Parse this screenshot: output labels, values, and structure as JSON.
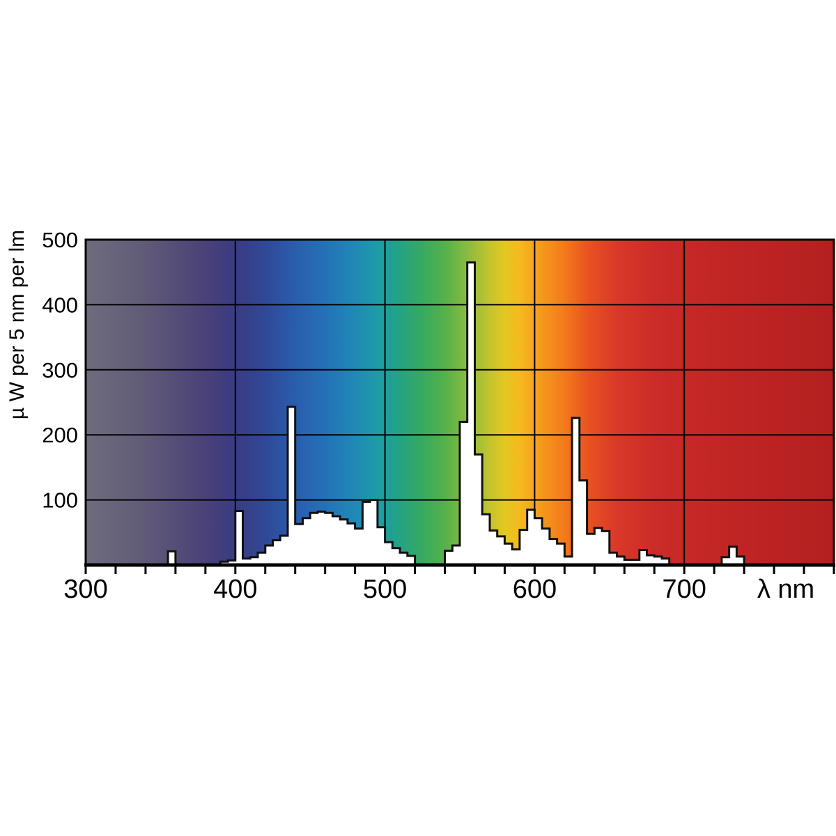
{
  "figure": {
    "y_axis_title": "µ W per 5 nm per lm",
    "x_axis_unit": "λ nm",
    "x_tick_labels": [
      "300",
      "400",
      "500",
      "600",
      "700"
    ],
    "y_tick_labels": [
      "100",
      "200",
      "300",
      "400",
      "500"
    ]
  },
  "chart_data": {
    "type": "area",
    "title": "",
    "xlabel": "λ nm",
    "ylabel": "µ W per 5 nm per lm",
    "x_range": [
      300,
      800
    ],
    "ylim": [
      0,
      500
    ],
    "grid": true,
    "x_major_gridlines_nm": [
      400,
      500,
      600,
      700
    ],
    "y_major_gridlines": [
      100,
      200,
      300,
      400
    ],
    "x_minor_tick_step_nm": 20,
    "bin_width_nm": 5,
    "bins_start_nm": 300,
    "values_uW_per_5nm_per_lm": [
      0,
      0,
      0,
      0,
      0,
      0,
      0,
      0,
      0,
      0,
      0,
      21,
      0,
      0,
      0,
      0,
      0,
      0,
      5,
      7,
      83,
      10,
      12,
      19,
      30,
      38,
      45,
      243,
      63,
      72,
      80,
      82,
      80,
      75,
      70,
      64,
      56,
      97,
      100,
      58,
      35,
      26,
      19,
      14,
      0,
      0,
      0,
      0,
      22,
      30,
      220,
      465,
      170,
      78,
      53,
      44,
      33,
      24,
      54,
      85,
      72,
      56,
      40,
      33,
      13,
      226,
      130,
      48,
      57,
      52,
      19,
      13,
      8,
      8,
      23,
      15,
      13,
      10,
      0,
      0,
      0,
      0,
      0,
      0,
      0,
      12,
      28,
      13,
      0,
      0,
      0,
      0,
      0,
      0,
      0,
      0,
      0,
      0,
      0,
      0
    ],
    "notable_peaks": [
      {
        "nm": 355,
        "value": 21
      },
      {
        "nm": 400,
        "value": 83
      },
      {
        "nm": 435,
        "value": 243
      },
      {
        "nm": 490,
        "value": 100
      },
      {
        "nm": 555,
        "value": 465
      },
      {
        "nm": 595,
        "value": 85
      },
      {
        "nm": 625,
        "value": 226
      },
      {
        "nm": 730,
        "value": 28
      }
    ],
    "curve_fill": "#ffffff",
    "curve_stroke": "#111111",
    "grid_color": "#000000",
    "background_spectrum_gradient": [
      {
        "nm": 300,
        "color": "#6f6c7d"
      },
      {
        "nm": 340,
        "color": "#605a78"
      },
      {
        "nm": 380,
        "color": "#4a4178"
      },
      {
        "nm": 400,
        "color": "#3a3b82"
      },
      {
        "nm": 420,
        "color": "#304896"
      },
      {
        "nm": 440,
        "color": "#2a5dae"
      },
      {
        "nm": 460,
        "color": "#2471b8"
      },
      {
        "nm": 480,
        "color": "#2089b6"
      },
      {
        "nm": 495,
        "color": "#1d9ca8"
      },
      {
        "nm": 510,
        "color": "#23a383"
      },
      {
        "nm": 525,
        "color": "#37aa60"
      },
      {
        "nm": 540,
        "color": "#55b14a"
      },
      {
        "nm": 555,
        "color": "#8abb3f"
      },
      {
        "nm": 570,
        "color": "#c3c42e"
      },
      {
        "nm": 580,
        "color": "#e4c723"
      },
      {
        "nm": 590,
        "color": "#f4ba1e"
      },
      {
        "nm": 605,
        "color": "#f5981c"
      },
      {
        "nm": 620,
        "color": "#f37a1b"
      },
      {
        "nm": 635,
        "color": "#e95420"
      },
      {
        "nm": 655,
        "color": "#d93829"
      },
      {
        "nm": 680,
        "color": "#cb2c28"
      },
      {
        "nm": 720,
        "color": "#c22625"
      },
      {
        "nm": 800,
        "color": "#b32020"
      }
    ]
  }
}
